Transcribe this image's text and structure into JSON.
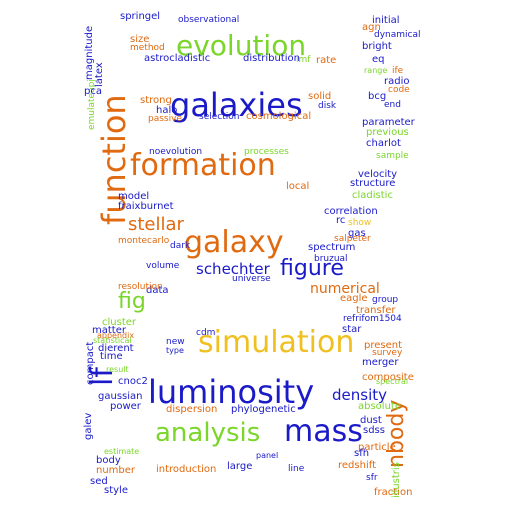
{
  "words": [
    {
      "text": "galaxies",
      "color": "#1a1ac8"
    },
    {
      "text": "evolution",
      "color": "#7ad62a"
    },
    {
      "text": "function",
      "color": "#e06a10"
    },
    {
      "text": "formation",
      "color": "#e06a10"
    },
    {
      "text": "galaxy",
      "color": "#e06a10"
    },
    {
      "text": "simulation",
      "color": "#f0c020"
    },
    {
      "text": "luminosity",
      "color": "#1a1ac8"
    },
    {
      "text": "mass",
      "color": "#1a1ac8"
    },
    {
      "text": "analysis",
      "color": "#7ad62a"
    },
    {
      "text": "lf",
      "color": "#1a1ac8"
    },
    {
      "text": "fig",
      "color": "#7ad62a"
    },
    {
      "text": "figure",
      "color": "#1a1ac8"
    },
    {
      "text": "stellar",
      "color": "#e06a10"
    },
    {
      "text": "schechter",
      "color": "#1a1ac8"
    },
    {
      "text": "nbody",
      "color": "#e06a10"
    },
    {
      "text": "density",
      "color": "#1a1ac8"
    },
    {
      "text": "numerical",
      "color": "#e06a10"
    },
    {
      "text": "cosmological",
      "color": "#e06a10"
    },
    {
      "text": "astrocladistic",
      "color": "#1a1ac8"
    },
    {
      "text": "distribution",
      "color": "#1a1ac8"
    },
    {
      "text": "halo",
      "color": "#1a1ac8"
    },
    {
      "text": "selection",
      "color": "#1a1ac8"
    },
    {
      "text": "strong",
      "color": "#e06a10"
    },
    {
      "text": "phylogenetic",
      "color": "#1a1ac8"
    },
    {
      "text": "dispersion",
      "color": "#e06a10"
    },
    {
      "text": "redshift",
      "color": "#e06a10"
    },
    {
      "text": "particle",
      "color": "#e06a10"
    },
    {
      "text": "introduction",
      "color": "#e06a10"
    },
    {
      "text": "large",
      "color": "#1a1ac8"
    },
    {
      "text": "line",
      "color": "#1a1ac8"
    },
    {
      "text": "spectrum",
      "color": "#1a1ac8"
    },
    {
      "text": "universe",
      "color": "#1a1ac8"
    },
    {
      "text": "volume",
      "color": "#1a1ac8"
    },
    {
      "text": "dark",
      "color": "#1a1ac8"
    },
    {
      "text": "model",
      "color": "#1a1ac8"
    },
    {
      "text": "fraixburnet",
      "color": "#1a1ac8"
    },
    {
      "text": "montecarlo",
      "color": "#e06a10"
    },
    {
      "text": "noevolution",
      "color": "#1a1ac8"
    },
    {
      "text": "processes",
      "color": "#7ad62a"
    },
    {
      "text": "local",
      "color": "#e06a10"
    },
    {
      "text": "data",
      "color": "#1a1ac8"
    },
    {
      "text": "cluster",
      "color": "#7ad62a"
    },
    {
      "text": "matter",
      "color": "#1a1ac8"
    },
    {
      "text": "cdm",
      "color": "#1a1ac8"
    },
    {
      "text": "new",
      "color": "#1a1ac8"
    },
    {
      "text": "time",
      "color": "#1a1ac8"
    },
    {
      "text": "dierent",
      "color": "#1a1ac8"
    },
    {
      "text": "cnoc2",
      "color": "#1a1ac8"
    },
    {
      "text": "gaussian",
      "color": "#1a1ac8"
    },
    {
      "text": "power",
      "color": "#1a1ac8"
    },
    {
      "text": "body",
      "color": "#1a1ac8"
    },
    {
      "text": "number",
      "color": "#e06a10"
    },
    {
      "text": "sed",
      "color": "#1a1ac8"
    },
    {
      "text": "style",
      "color": "#1a1ac8"
    },
    {
      "text": "estimate",
      "color": "#7ad62a"
    },
    {
      "text": "result",
      "color": "#7ad62a"
    },
    {
      "text": "appendix",
      "color": "#e06a10"
    },
    {
      "text": "statistical",
      "color": "#7ad62a"
    },
    {
      "text": "galev",
      "color": "#1a1ac8"
    },
    {
      "text": "compact",
      "color": "#1a1ac8"
    },
    {
      "text": "emulateapj",
      "color": "#7ad62a"
    },
    {
      "text": "pca",
      "color": "#1a1ac8"
    },
    {
      "text": "latex",
      "color": "#1a1ac8"
    },
    {
      "text": "magnitude",
      "color": "#1a1ac8"
    },
    {
      "text": "springel",
      "color": "#1a1ac8"
    },
    {
      "text": "size",
      "color": "#e06a10"
    },
    {
      "text": "method",
      "color": "#e06a10"
    },
    {
      "text": "observational",
      "color": "#1a1ac8"
    },
    {
      "text": "rate",
      "color": "#e06a10"
    },
    {
      "text": "imf",
      "color": "#7ad62a"
    },
    {
      "text": "solid",
      "color": "#e06a10"
    },
    {
      "text": "disk",
      "color": "#1a1ac8"
    },
    {
      "text": "passive",
      "color": "#e06a10"
    },
    {
      "text": "initial",
      "color": "#1a1ac8"
    },
    {
      "text": "agn",
      "color": "#e06a10"
    },
    {
      "text": "dynamical",
      "color": "#1a1ac8"
    },
    {
      "text": "bright",
      "color": "#1a1ac8"
    },
    {
      "text": "eq",
      "color": "#1a1ac8"
    },
    {
      "text": "range",
      "color": "#7ad62a"
    },
    {
      "text": "ife",
      "color": "#e06a10"
    },
    {
      "text": "radio",
      "color": "#1a1ac8"
    },
    {
      "text": "bcg",
      "color": "#1a1ac8"
    },
    {
      "text": "code",
      "color": "#e06a10"
    },
    {
      "text": "end",
      "color": "#1a1ac8"
    },
    {
      "text": "parameter",
      "color": "#1a1ac8"
    },
    {
      "text": "previous",
      "color": "#7ad62a"
    },
    {
      "text": "charlot",
      "color": "#1a1ac8"
    },
    {
      "text": "sample",
      "color": "#7ad62a"
    },
    {
      "text": "velocity",
      "color": "#1a1ac8"
    },
    {
      "text": "cladistic",
      "color": "#7ad62a"
    },
    {
      "text": "structure",
      "color": "#1a1ac8"
    },
    {
      "text": "correlation",
      "color": "#1a1ac8"
    },
    {
      "text": "rc",
      "color": "#1a1ac8"
    },
    {
      "text": "show",
      "color": "#f0c020"
    },
    {
      "text": "gas",
      "color": "#1a1ac8"
    },
    {
      "text": "salpeter",
      "color": "#e06a10"
    },
    {
      "text": "bruzual",
      "color": "#1a1ac8"
    },
    {
      "text": "eagle",
      "color": "#e06a10"
    },
    {
      "text": "group",
      "color": "#1a1ac8"
    },
    {
      "text": "transfer",
      "color": "#e06a10"
    },
    {
      "text": "refrifom1504",
      "color": "#1a1ac8"
    },
    {
      "text": "star",
      "color": "#1a1ac8"
    },
    {
      "text": "present",
      "color": "#e06a10"
    },
    {
      "text": "survey",
      "color": "#e06a10"
    },
    {
      "text": "merger",
      "color": "#1a1ac8"
    },
    {
      "text": "composite",
      "color": "#e06a10"
    },
    {
      "text": "absolute",
      "color": "#7ad62a"
    },
    {
      "text": "dust",
      "color": "#1a1ac8"
    },
    {
      "text": "sdss",
      "color": "#1a1ac8"
    },
    {
      "text": "sfh",
      "color": "#1a1ac8"
    },
    {
      "text": "fraction",
      "color": "#e06a10"
    },
    {
      "text": "sfr",
      "color": "#1a1ac8"
    },
    {
      "text": "illustris",
      "color": "#7ad62a"
    },
    {
      "text": "resolution",
      "color": "#e06a10"
    },
    {
      "text": "type",
      "color": "#1a1ac8"
    },
    {
      "text": "panel",
      "color": "#1a1ac8"
    },
    {
      "text": "spectral",
      "color": "#7ad62a"
    },
    {
      "text": "ofr",
      "color": "#1a1ac8"
    }
  ]
}
